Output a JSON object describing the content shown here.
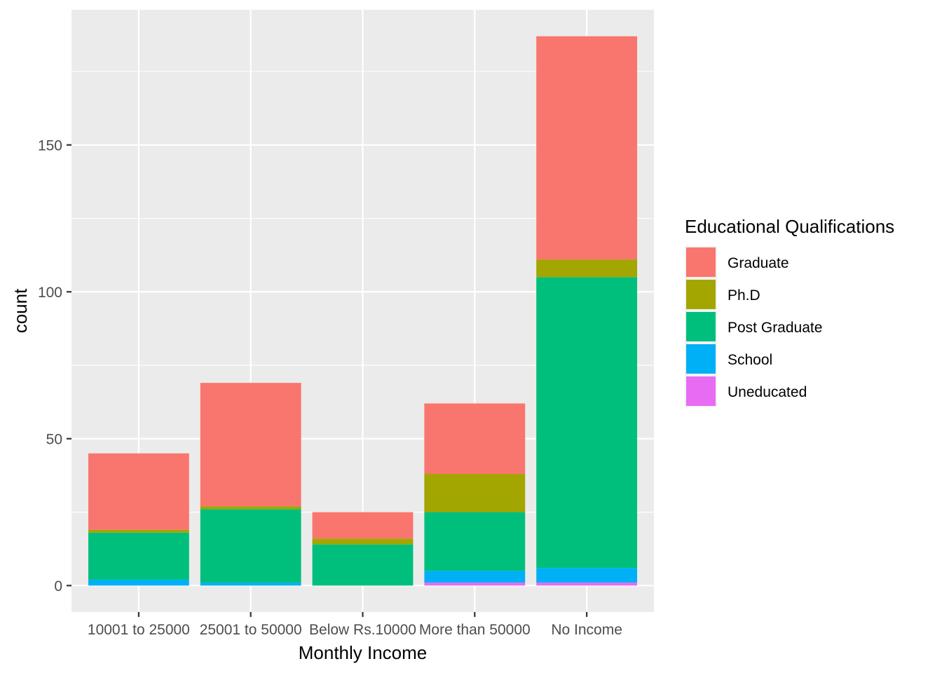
{
  "chart_data": {
    "type": "bar",
    "stacked": true,
    "xlabel": "Monthly Income",
    "ylabel": "count",
    "ylim": [
      -9,
      196
    ],
    "yticks": [
      0,
      50,
      100,
      150
    ],
    "categories": [
      "10001 to 25000",
      "25001 to 50000",
      "Below Rs.10000",
      "More than 50000",
      "No Income"
    ],
    "series": [
      {
        "name": "Graduate",
        "color": "#F8766D",
        "values": [
          26,
          42,
          9,
          24,
          76
        ]
      },
      {
        "name": "Ph.D",
        "color": "#A3A500",
        "values": [
          1,
          1,
          2,
          13,
          6
        ]
      },
      {
        "name": "Post Graduate",
        "color": "#00BF7D",
        "values": [
          16,
          25,
          14,
          20,
          99
        ]
      },
      {
        "name": "School",
        "color": "#00B0F6",
        "values": [
          2,
          1,
          0,
          4,
          5
        ]
      },
      {
        "name": "Uneducated",
        "color": "#E76BF3",
        "values": [
          0,
          0,
          0,
          1,
          1
        ]
      }
    ],
    "legend": {
      "title": "Educational Qualifications",
      "position": "right"
    },
    "panel_background": "#EBEBEB",
    "grid": true
  }
}
